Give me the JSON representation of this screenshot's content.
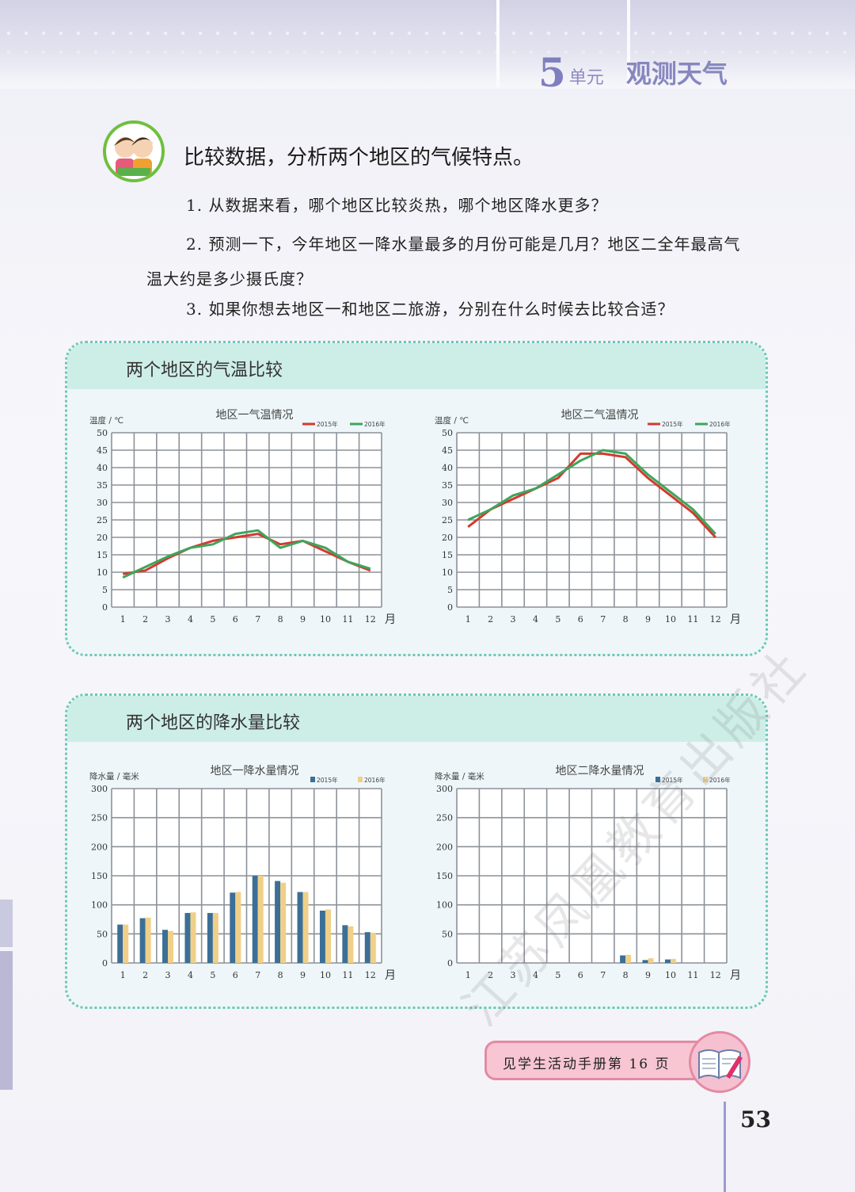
{
  "header": {
    "unit_number": "5",
    "unit_label": "单元",
    "unit_title": "观测天气"
  },
  "activity": {
    "heading": "比较数据，分析两个地区的气候特点。",
    "questions": [
      "1. 从数据来看，哪个地区比较炎热，哪个地区降水更多？",
      "2. 预测一下，今年地区一降水量最多的月份可能是几月？地区二全年最高气温大约是多少摄氏度？",
      "3. 如果你想去地区一和地区二旅游，分别在什么时候去比较合适？"
    ]
  },
  "panels": [
    {
      "title": "两个地区的气温比较"
    },
    {
      "title": "两个地区的降水量比较"
    }
  ],
  "colors": {
    "red_2015": "#d23a2e",
    "green_2016": "#3ea55c",
    "blue_2015": "#3b6f96",
    "yellow_2016": "#f0cf88",
    "panel_border": "#6cc7b8"
  },
  "chart_data": [
    {
      "type": "line",
      "title": "地区一气温情况",
      "ylabel": "温度 / ℃",
      "xunit": "月",
      "categories": [
        "1",
        "2",
        "3",
        "4",
        "5",
        "6",
        "7",
        "8",
        "9",
        "10",
        "11",
        "12"
      ],
      "ylim": [
        0,
        50
      ],
      "yticks": [
        0,
        5,
        10,
        15,
        20,
        25,
        30,
        35,
        40,
        45,
        50
      ],
      "grid": true,
      "legend": "top-right",
      "series": [
        {
          "name": "2015年",
          "color": "#d23a2e",
          "values": [
            9.5,
            10.5,
            14,
            17,
            19,
            20,
            21,
            18,
            19,
            16,
            13,
            10.5
          ]
        },
        {
          "name": "2016年",
          "color": "#3ea55c",
          "values": [
            8.5,
            11.5,
            14.5,
            17,
            18,
            21,
            22,
            17,
            19,
            17,
            13,
            11
          ]
        }
      ]
    },
    {
      "type": "line",
      "title": "地区二气温情况",
      "ylabel": "温度 / ℃",
      "xunit": "月",
      "categories": [
        "1",
        "2",
        "3",
        "4",
        "5",
        "6",
        "7",
        "8",
        "9",
        "10",
        "11",
        "12"
      ],
      "ylim": [
        0,
        50
      ],
      "yticks": [
        0,
        5,
        10,
        15,
        20,
        25,
        30,
        35,
        40,
        45,
        50
      ],
      "grid": true,
      "legend": "top-right",
      "series": [
        {
          "name": "2015年",
          "color": "#d23a2e",
          "values": [
            23,
            28,
            31,
            34,
            37,
            44,
            44,
            43,
            37,
            32,
            27,
            20
          ]
        },
        {
          "name": "2016年",
          "color": "#3ea55c",
          "values": [
            25,
            28,
            32,
            34,
            38,
            42,
            45,
            44,
            38,
            33,
            28,
            21
          ]
        }
      ]
    },
    {
      "type": "bar",
      "title": "地区一降水量情况",
      "ylabel": "降水量 / 毫米",
      "xunit": "月",
      "categories": [
        "1",
        "2",
        "3",
        "4",
        "5",
        "6",
        "7",
        "8",
        "9",
        "10",
        "11",
        "12"
      ],
      "ylim": [
        0,
        300
      ],
      "yticks": [
        0,
        50,
        100,
        150,
        200,
        250,
        300
      ],
      "grid": true,
      "legend": "top-right",
      "series": [
        {
          "name": "2015年",
          "color": "#3b6f96",
          "values": [
            66,
            77,
            57,
            86,
            86,
            121,
            150,
            141,
            122,
            90,
            65,
            53
          ]
        },
        {
          "name": "2016年",
          "color": "#f0cf88",
          "values": [
            66,
            78,
            55,
            87,
            86,
            122,
            150,
            138,
            122,
            92,
            63,
            52
          ]
        }
      ]
    },
    {
      "type": "bar",
      "title": "地区二降水量情况",
      "ylabel": "降水量 / 毫米",
      "xunit": "月",
      "categories": [
        "1",
        "2",
        "3",
        "4",
        "5",
        "6",
        "7",
        "8",
        "9",
        "10",
        "11",
        "12"
      ],
      "ylim": [
        0,
        300
      ],
      "yticks": [
        0,
        50,
        100,
        150,
        200,
        250,
        300
      ],
      "grid": true,
      "legend": "top-right",
      "series": [
        {
          "name": "2015年",
          "color": "#3b6f96",
          "values": [
            0,
            0,
            0,
            0,
            0,
            0,
            0,
            13,
            5,
            6,
            0,
            0
          ]
        },
        {
          "name": "2016年",
          "color": "#f0cf88",
          "values": [
            0,
            0,
            0,
            0,
            0,
            0,
            0,
            14,
            8,
            7,
            0,
            0
          ]
        }
      ]
    }
  ],
  "footer": {
    "workbook_note": "见学生活动手册第 16 页",
    "page_number": "53"
  },
  "watermark": "江苏凤凰教育出版社"
}
